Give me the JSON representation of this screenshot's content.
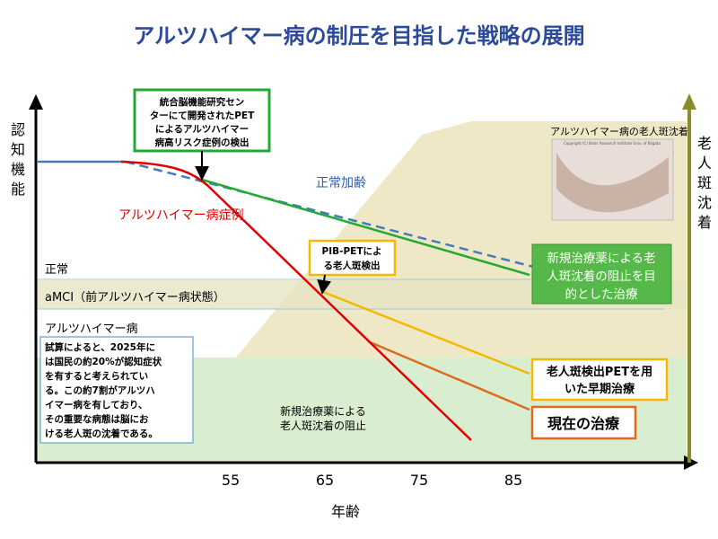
{
  "title": "アルツハイマー病の制圧を目指した戦略の展開",
  "y_axis_label": [
    "認",
    "知",
    "機",
    "能"
  ],
  "y2_axis_label": [
    "老",
    "人",
    "斑",
    "沈",
    "着"
  ],
  "x_axis_label": "年齢",
  "x_ticks": [
    "55",
    "65",
    "75",
    "85"
  ],
  "levels": [
    "正常",
    "aMCI（前アルツハイマー病状態）",
    "アルツハイマー病"
  ],
  "curve_labels": {
    "normal_aging": "正常加齢",
    "ad_case": "アルツハイマー病症例"
  },
  "photo": {
    "caption": "アルツハイマー病の老人斑沈着",
    "credit": "Copyright (C) Brain Research Institute Univ. of Niigata"
  },
  "callouts": {
    "center": [
      "統合脳機能研究セン",
      "ターにて開発されたPET",
      "によるアルツハイマー",
      "病高リスク症例の検出"
    ],
    "pib": [
      "PIB-PETによ",
      "る老人斑検出"
    ],
    "new_drug_treatment": [
      "新規治療薬による老",
      "人斑沈着の阻止を目",
      "的とした治療"
    ],
    "early_treatment": [
      "老人斑検出PETを用",
      "いた早期治療"
    ],
    "current_treatment": "現在の治療",
    "new_drug_block": [
      "新規治療薬による",
      "老人斑沈着の阻止"
    ],
    "note": [
      "試算によると、2025年に",
      "は国民の約20%が認知症状",
      "を有すると考えられてい",
      "る。この約7割がアルツハ",
      "イマー病を有しており、",
      "その重要な病態は脳にお",
      "ける老人斑の沈着である。"
    ]
  }
}
